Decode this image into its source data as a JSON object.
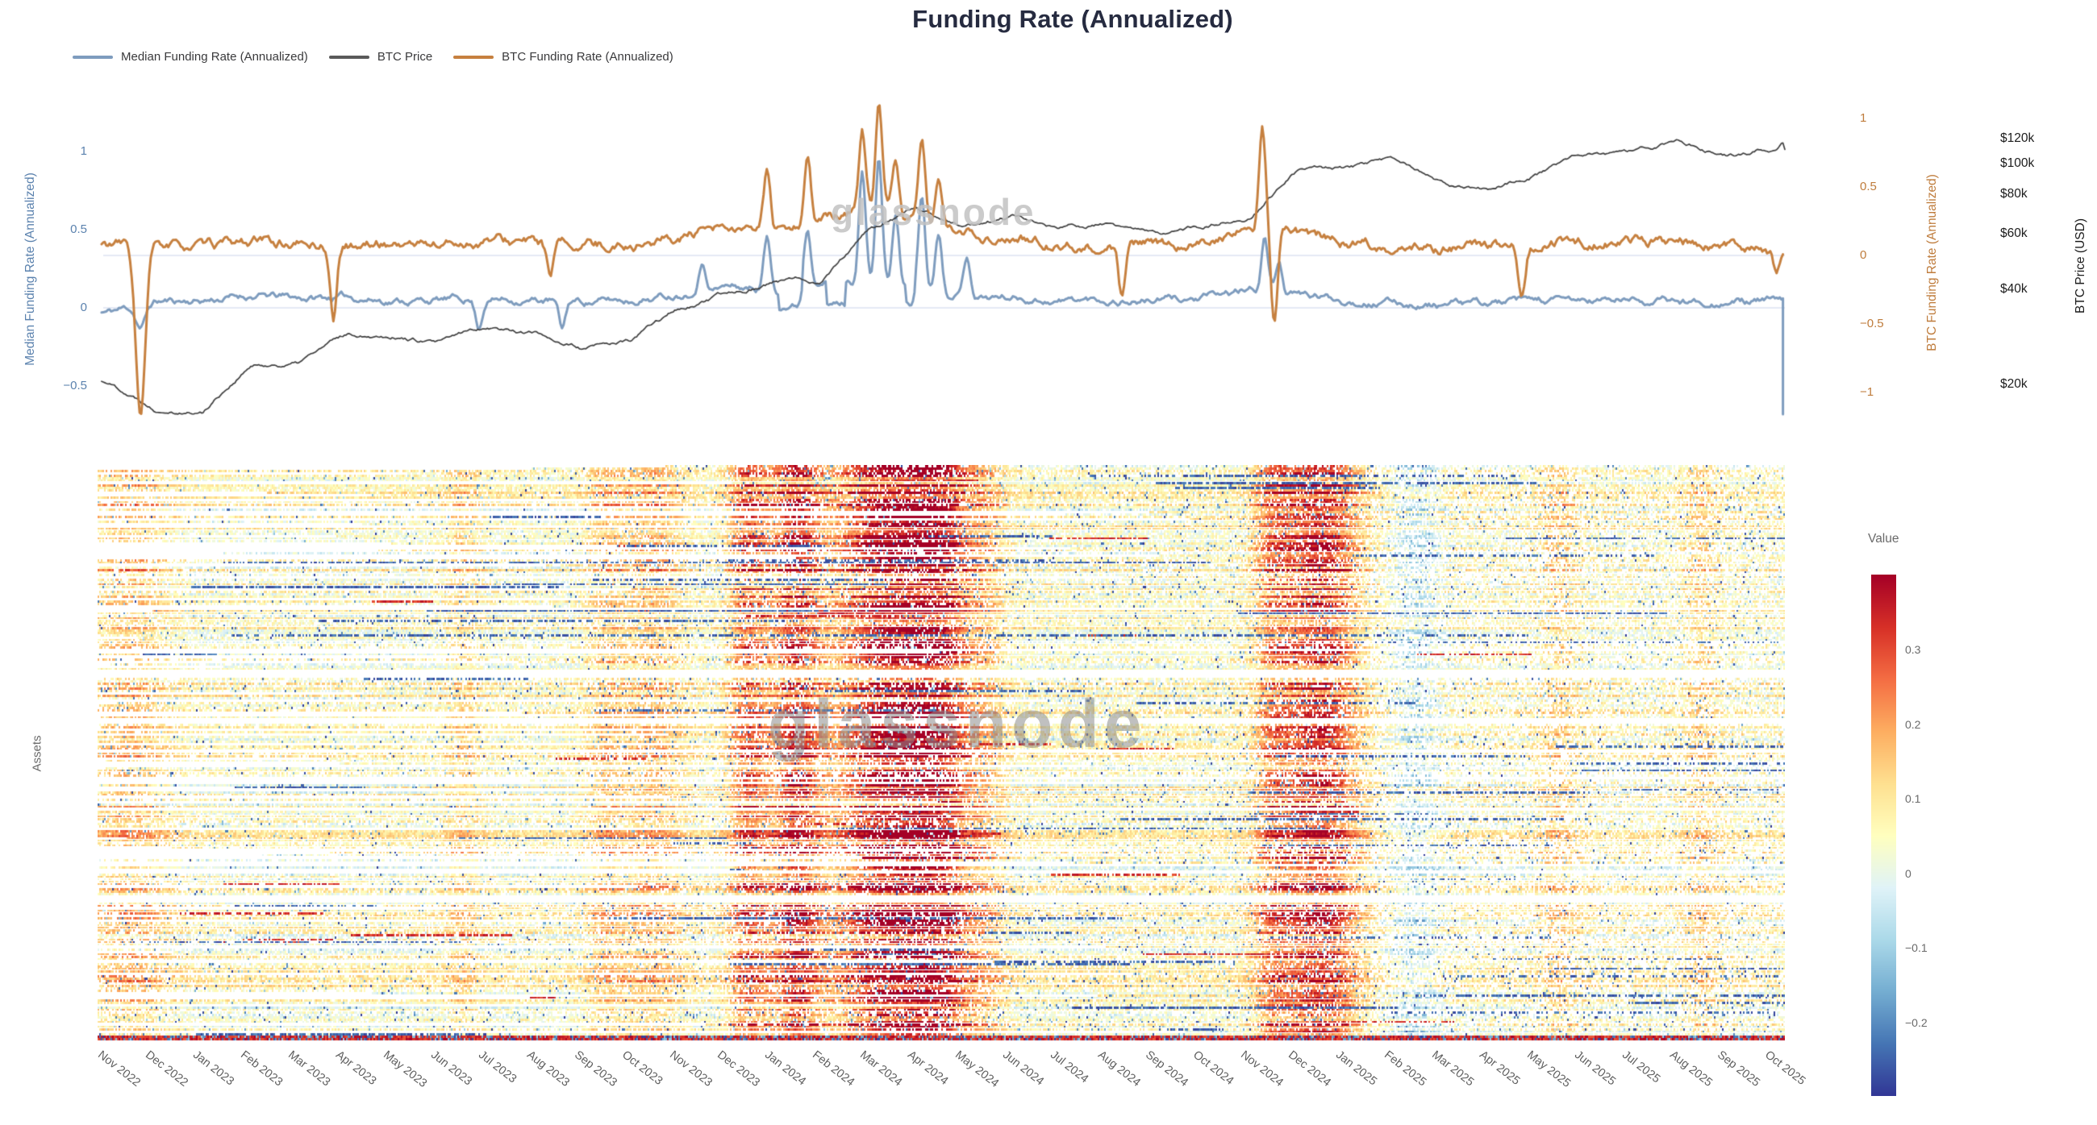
{
  "title": "Funding Rate (Annualized)",
  "watermark": "glassnode",
  "colors": {
    "title_text": "#262b40",
    "median_line": "#7e9cbe",
    "btc_price_line": "#3f3f3f",
    "btc_funding_line": "#c6803f",
    "left_axis_text": "#5b82ae",
    "right_axis_text": "#bf7c3c",
    "price_axis_text": "#1b1b1b",
    "muted_text": "#6a6a6a",
    "gridline": "#e4e9f4"
  },
  "legend": {
    "items": [
      {
        "label": "Median Funding Rate (Annualized)",
        "color": "#7e9cbe"
      },
      {
        "label": "BTC Price",
        "color": "#5a5a5a"
      },
      {
        "label": "BTC Funding Rate (Annualized)",
        "color": "#c6803f"
      }
    ]
  },
  "chart_data": [
    {
      "type": "line",
      "x_months": [
        "Nov 2022",
        "Dec 2022",
        "Jan 2023",
        "Feb 2023",
        "Mar 2023",
        "Apr 2023",
        "May 2023",
        "Jun 2023",
        "Jul 2023",
        "Aug 2023",
        "Sep 2023",
        "Oct 2023",
        "Nov 2023",
        "Dec 2023",
        "Jan 2024",
        "Feb 2024",
        "Mar 2024",
        "Apr 2024",
        "May 2024",
        "Jun 2024",
        "Jul 2024",
        "Aug 2024",
        "Sep 2024",
        "Oct 2024",
        "Nov 2024",
        "Dec 2024",
        "Jan 2025",
        "Feb 2025",
        "Mar 2025",
        "Apr 2025",
        "May 2025",
        "Jun 2025",
        "Jul 2025",
        "Aug 2025",
        "Sep 2025",
        "Oct 2025"
      ],
      "series": [
        {
          "name": "Median Funding Rate (Annualized)",
          "yaxis": "median_funding",
          "color": "#7e9cbe",
          "monthly_values": [
            -0.03,
            0.04,
            0.05,
            0.08,
            0.06,
            0.07,
            0.05,
            0.05,
            0.06,
            0.05,
            0.04,
            0.05,
            0.09,
            0.14,
            0.11,
            0.18,
            0.15,
            0.12,
            0.08,
            0.07,
            0.05,
            0.05,
            0.05,
            0.06,
            0.11,
            0.08,
            0.05,
            0.03,
            0.02,
            0.03,
            0.04,
            0.04,
            0.05,
            0.04,
            0.04,
            0.04
          ],
          "spikes": [
            {
              "m": 0.7,
              "v": -0.12,
              "w": 0.1
            },
            {
              "m": 7.8,
              "v": -0.12
            },
            {
              "m": 9.55,
              "v": -0.14
            },
            {
              "m": 12.5,
              "v": 0.3
            },
            {
              "m": 13.85,
              "v": 0.45
            },
            {
              "m": 14.7,
              "v": 0.52
            },
            {
              "m": 15.85,
              "v": 0.88
            },
            {
              "m": 16.2,
              "v": 0.95
            },
            {
              "m": 16.55,
              "v": 0.58
            },
            {
              "m": 17.1,
              "v": 0.72
            },
            {
              "m": 17.45,
              "v": 0.5
            },
            {
              "m": 18.05,
              "v": 0.33
            },
            {
              "m": 24.3,
              "v": 0.45
            },
            {
              "m": 24.6,
              "v": 0.3
            }
          ],
          "plateaus": [
            {
              "m0": 14.1,
              "m1": 14.6,
              "v": 0.02
            },
            {
              "m0": 15.1,
              "m1": 15.5,
              "v": 0.025
            },
            {
              "m0": 16.75,
              "m1": 16.95,
              "v": 0.03
            }
          ],
          "end_plunge_value": -0.68
        },
        {
          "name": "BTC Price",
          "yaxis": "btc_price_usd",
          "color": "#3f3f3f",
          "monthly_values_kusd": [
            20.4,
            17.1,
            16.6,
            23.1,
            23.4,
            28.4,
            29.2,
            27.1,
            30.4,
            29.2,
            26.0,
            27.2,
            34.6,
            38.0,
            42.5,
            43.0,
            62.0,
            70.8,
            62.5,
            67.5,
            62.0,
            64.0,
            58.5,
            62.5,
            69.5,
            96.0,
            94.5,
            101.0,
            85.0,
            82.5,
            94.5,
            104.5,
            107.0,
            116.0,
            110.0,
            114.0
          ],
          "end_value_kusd": 123
        },
        {
          "name": "BTC Funding Rate (Annualized)",
          "yaxis": "btc_funding",
          "color": "#c6803f",
          "monthly_values": [
            0.08,
            0.06,
            0.07,
            0.1,
            0.08,
            0.07,
            0.09,
            0.08,
            0.11,
            0.09,
            0.07,
            0.08,
            0.13,
            0.18,
            0.15,
            0.25,
            0.35,
            0.22,
            0.15,
            0.12,
            0.08,
            0.06,
            0.07,
            0.1,
            0.2,
            0.15,
            0.1,
            0.06,
            0.05,
            0.07,
            0.08,
            0.09,
            0.11,
            0.09,
            0.07,
            0.04
          ],
          "spikes": [
            {
              "m": 0.7,
              "v": -1.18,
              "w": 0.1
            },
            {
              "m": 4.75,
              "v": -0.45
            },
            {
              "m": 9.3,
              "v": -0.18
            },
            {
              "m": 13.85,
              "v": 0.6
            },
            {
              "m": 14.7,
              "v": 0.75
            },
            {
              "m": 15.85,
              "v": 0.9
            },
            {
              "m": 16.2,
              "v": 1.12
            },
            {
              "m": 16.55,
              "v": 0.7
            },
            {
              "m": 17.1,
              "v": 0.85
            },
            {
              "m": 17.45,
              "v": 0.6
            },
            {
              "m": 21.3,
              "v": -0.3
            },
            {
              "m": 24.25,
              "v": 0.92
            },
            {
              "m": 24.5,
              "v": -0.52
            },
            {
              "m": 29.7,
              "v": -0.28
            },
            {
              "m": 35.05,
              "v": -0.12
            }
          ]
        }
      ],
      "axes": {
        "median_funding": {
          "title": "Median Funding Rate (Annualized)",
          "side": "left",
          "ticks": [
            1,
            0.5,
            0,
            -0.5
          ]
        },
        "btc_funding": {
          "title": "BTC Funding Rate (Annualized)",
          "side": "right",
          "ticks": [
            1,
            0.5,
            0,
            -0.5,
            -1
          ]
        },
        "btc_price_usd": {
          "title": "BTC Price (USD)",
          "side": "far-right",
          "scale": "log",
          "tick_labels": [
            "$120k",
            "$100k",
            "$80k",
            "$60k",
            "$40k",
            "$20k"
          ],
          "tick_values_kusd": [
            120,
            100,
            80,
            60,
            40,
            20
          ]
        }
      },
      "gridlines": {
        "zerolines": [
          "btc_funding",
          "median_funding"
        ]
      }
    },
    {
      "type": "heatmap",
      "ylabel": "Assets",
      "x_ticks": [
        "Nov 2022",
        "Dec 2022",
        "Jan 2023",
        "Feb 2023",
        "Mar 2023",
        "Apr 2023",
        "May 2023",
        "Jun 2023",
        "Jul 2023",
        "Aug 2023",
        "Sep 2023",
        "Oct 2023",
        "Nov 2023",
        "Dec 2023",
        "Jan 2024",
        "Feb 2024",
        "Mar 2024",
        "Apr 2024",
        "May 2024",
        "Jun 2024",
        "Jul 2024",
        "Aug 2024",
        "Sep 2024",
        "Oct 2024",
        "Nov 2024",
        "Dec 2024",
        "Jan 2025",
        "Feb 2025",
        "Mar 2025",
        "Apr 2025",
        "May 2025",
        "Jun 2025",
        "Jul 2025",
        "Aug 2025",
        "Sep 2025",
        "Oct 2025"
      ],
      "colorbar": {
        "title": "Value",
        "ticks": [
          0.3,
          0.2,
          0.1,
          0,
          -0.1,
          -0.2
        ],
        "vmin": -0.3,
        "vmax": 0.4,
        "palette": "RdYlBu"
      },
      "summary": "Per-asset annualized funding rates; mostly mildly positive (cream/orange), with strongly positive (dark red) vertical bands around Dec 2023 - Apr 2024 and Nov - Dec 2024, sparser and paler through 2025, scattered negative (blue) streaks.",
      "hot_bands": [
        {
          "month": "Nov 2022",
          "width": 0.6,
          "strength": 0.12
        },
        {
          "month": "Jun 2023",
          "width": 0.25,
          "strength": 0.08
        },
        {
          "month": "Sep 2023",
          "width": 0.3,
          "strength": 0.1
        },
        {
          "month": "Oct 2023",
          "width": 0.45,
          "strength": 0.12
        },
        {
          "month": "Dec 2023",
          "width": 0.3,
          "strength": 0.24
        },
        {
          "month": "Jan 2024",
          "width": 0.35,
          "strength": 0.3
        },
        {
          "month": "Mar 2024",
          "width": 0.8,
          "strength": 0.38
        },
        {
          "month": "Apr 2024",
          "width": 0.45,
          "strength": 0.24
        },
        {
          "month": "May 2024",
          "width": 0.3,
          "strength": 0.1
        },
        {
          "month": "Nov 2024",
          "width": 0.3,
          "strength": 0.16
        },
        {
          "month": "Dec 2024",
          "width": 0.55,
          "strength": 0.3
        },
        {
          "month": "May 2025",
          "width": 0.3,
          "strength": 0.08
        },
        {
          "month": "Aug 2025",
          "width": 0.25,
          "strength": 0.08
        }
      ],
      "cold_bands": [
        {
          "month": "Feb 2025",
          "width": 0.35,
          "strength": -0.1
        }
      ]
    }
  ]
}
